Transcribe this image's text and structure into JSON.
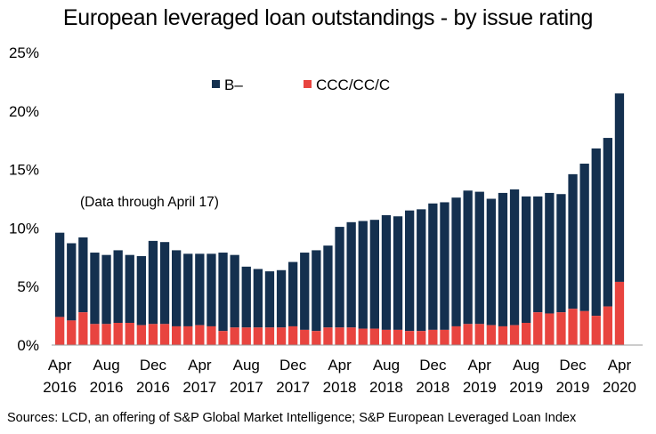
{
  "title": "European leveraged loan outstandings - by issue rating",
  "annotation": "(Data through April 17)",
  "source": "Sources: LCD, an offering of S&P Global Market Intelligence; S&P European Leveraged Loan Index",
  "colors": {
    "b_minus": "#14304f",
    "ccc": "#e8443f"
  },
  "chart_data": {
    "type": "bar",
    "stacked": true,
    "title": "European leveraged loan outstandings - by issue rating",
    "xlabel": "",
    "ylabel": "",
    "ylim": [
      0,
      25
    ],
    "yticks": [
      "0%",
      "5%",
      "10%",
      "15%",
      "20%",
      "25%"
    ],
    "grid": false,
    "legend_position": "top",
    "x_tick_labels": [
      {
        "index": 0,
        "month": "Apr",
        "year": "2016"
      },
      {
        "index": 4,
        "month": "Aug",
        "year": "2016"
      },
      {
        "index": 8,
        "month": "Dec",
        "year": "2016"
      },
      {
        "index": 12,
        "month": "Apr",
        "year": "2017"
      },
      {
        "index": 16,
        "month": "Aug",
        "year": "2017"
      },
      {
        "index": 20,
        "month": "Dec",
        "year": "2017"
      },
      {
        "index": 24,
        "month": "Apr",
        "year": "2018"
      },
      {
        "index": 28,
        "month": "Aug",
        "year": "2018"
      },
      {
        "index": 32,
        "month": "Dec",
        "year": "2018"
      },
      {
        "index": 36,
        "month": "Apr",
        "year": "2019"
      },
      {
        "index": 40,
        "month": "Aug",
        "year": "2019"
      },
      {
        "index": 44,
        "month": "Dec",
        "year": "2019"
      },
      {
        "index": 48,
        "month": "Apr",
        "year": "2020"
      }
    ],
    "categories": [
      "Apr 2016",
      "May 2016",
      "Jun 2016",
      "Jul 2016",
      "Aug 2016",
      "Sep 2016",
      "Oct 2016",
      "Nov 2016",
      "Dec 2016",
      "Jan 2017",
      "Feb 2017",
      "Mar 2017",
      "Apr 2017",
      "May 2017",
      "Jun 2017",
      "Jul 2017",
      "Aug 2017",
      "Sep 2017",
      "Oct 2017",
      "Nov 2017",
      "Dec 2017",
      "Jan 2018",
      "Feb 2018",
      "Mar 2018",
      "Apr 2018",
      "May 2018",
      "Jun 2018",
      "Jul 2018",
      "Aug 2018",
      "Sep 2018",
      "Oct 2018",
      "Nov 2018",
      "Dec 2018",
      "Jan 2019",
      "Feb 2019",
      "Mar 2019",
      "Apr 2019",
      "May 2019",
      "Jun 2019",
      "Jul 2019",
      "Aug 2019",
      "Sep 2019",
      "Oct 2019",
      "Nov 2019",
      "Dec 2019",
      "Jan 2020",
      "Feb 2020",
      "Mar 2020",
      "Apr 2020"
    ],
    "series": [
      {
        "name": "CCC/CC/C",
        "color": "#e8443f",
        "values": [
          2.4,
          2.1,
          2.8,
          1.8,
          1.8,
          1.9,
          1.9,
          1.7,
          1.8,
          1.8,
          1.6,
          1.6,
          1.7,
          1.6,
          1.2,
          1.5,
          1.5,
          1.5,
          1.5,
          1.5,
          1.6,
          1.3,
          1.2,
          1.5,
          1.5,
          1.5,
          1.4,
          1.4,
          1.3,
          1.3,
          1.2,
          1.2,
          1.3,
          1.3,
          1.6,
          1.8,
          1.8,
          1.7,
          1.6,
          1.7,
          1.9,
          2.8,
          2.7,
          2.8,
          3.1,
          2.9,
          2.5,
          3.3,
          5.4
        ]
      },
      {
        "name": "B–",
        "color": "#14304f",
        "values": [
          7.2,
          6.6,
          6.4,
          6.1,
          5.9,
          6.2,
          5.8,
          5.9,
          7.1,
          7.0,
          6.5,
          6.2,
          6.1,
          6.2,
          6.7,
          6.2,
          5.2,
          5.0,
          4.8,
          4.9,
          5.5,
          6.6,
          6.9,
          7.0,
          8.6,
          9.0,
          9.2,
          9.3,
          9.8,
          9.7,
          10.3,
          10.4,
          10.8,
          10.9,
          11.0,
          11.4,
          11.3,
          10.8,
          11.4,
          11.6,
          10.8,
          9.9,
          10.3,
          10.1,
          11.5,
          12.6,
          14.3,
          14.4,
          16.1
        ]
      }
    ]
  }
}
